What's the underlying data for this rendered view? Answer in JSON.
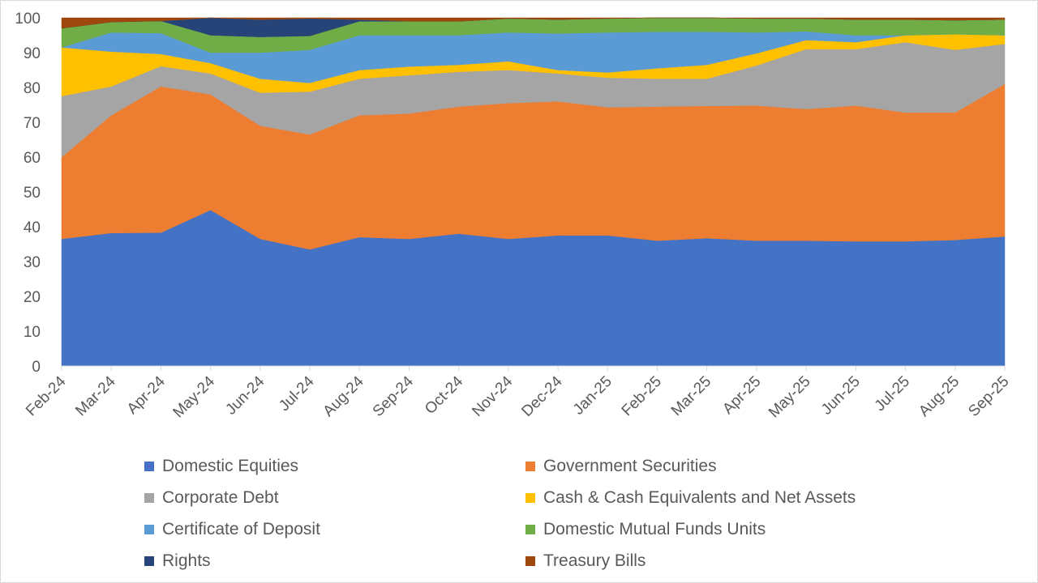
{
  "chart_data": {
    "type": "area",
    "stacked": true,
    "title": "",
    "xlabel": "",
    "ylabel": "",
    "ylim": [
      0,
      100
    ],
    "yticks": [
      "0",
      "10",
      "20",
      "30",
      "40",
      "50",
      "60",
      "70",
      "80",
      "90",
      "100"
    ],
    "gridlines": false,
    "legend_position": "bottom",
    "categories": [
      "Feb-24",
      "Mar-24",
      "Apr-24",
      "May-24",
      "Jun-24",
      "Jul-24",
      "Aug-24",
      "Sep-24",
      "Oct-24",
      "Nov-24",
      "Dec-24",
      "Jan-25",
      "Feb-25",
      "Mar-25",
      "Apr-25",
      "May-25",
      "Jun-25",
      "Jul-25",
      "Aug-25",
      "Sep-25"
    ],
    "series": [
      {
        "name": "Domestic Equities",
        "color": "#4472C4",
        "values": [
          36.5,
          38.2,
          38.3,
          44.8,
          36.5,
          33.5,
          37.0,
          36.5,
          38.0,
          36.5,
          37.5,
          37.5,
          36.0,
          36.7,
          36.0,
          36.0,
          35.8,
          35.8,
          36.2,
          37.2
        ]
      },
      {
        "name": "Government Securities",
        "color": "#ED7D31",
        "values": [
          23.5,
          33.8,
          42.0,
          33.2,
          32.5,
          33.0,
          35.0,
          36.0,
          36.5,
          39.0,
          38.5,
          36.8,
          38.5,
          38.0,
          38.8,
          37.8,
          39.0,
          37.0,
          36.6,
          43.8
        ]
      },
      {
        "name": "Corporate Debt",
        "color": "#A5A5A5",
        "values": [
          17.5,
          8.3,
          5.8,
          6.0,
          9.5,
          12.3,
          10.5,
          11.0,
          10.0,
          9.5,
          8.0,
          8.5,
          8.0,
          7.8,
          11.5,
          17.2,
          16.2,
          20.2,
          18.0,
          11.5
        ]
      },
      {
        "name": "Cash & Cash Equivalents and Net Assets",
        "color": "#FFC000",
        "values": [
          14.0,
          10.0,
          3.5,
          3.0,
          4.0,
          2.5,
          2.5,
          2.5,
          2.0,
          2.5,
          1.0,
          1.5,
          3.0,
          4.0,
          3.5,
          2.6,
          2.0,
          2.0,
          4.5,
          2.5
        ]
      },
      {
        "name": "Certificate of Deposit",
        "color": "#5B9BD5",
        "values": [
          0.0,
          5.5,
          6.0,
          3.0,
          7.5,
          9.5,
          10.0,
          9.0,
          8.5,
          8.3,
          10.5,
          11.5,
          10.5,
          9.5,
          6.0,
          2.5,
          2.0,
          0.0,
          0.0,
          0.0
        ]
      },
      {
        "name": "Domestic Mutual Funds Units",
        "color": "#70AD47",
        "values": [
          5.5,
          3.0,
          3.5,
          5.0,
          4.5,
          4.0,
          4.0,
          4.0,
          4.0,
          4.0,
          4.0,
          4.0,
          4.0,
          4.0,
          4.0,
          3.7,
          4.5,
          4.5,
          4.0,
          4.5
        ]
      },
      {
        "name": "Rights",
        "color": "#264478",
        "values": [
          0.0,
          0.0,
          0.0,
          5.0,
          5.0,
          5.0,
          0.5,
          0.0,
          0.0,
          0.0,
          0.0,
          0.0,
          0.0,
          0.0,
          0.0,
          0.0,
          0.0,
          0.0,
          0.0,
          0.0
        ]
      },
      {
        "name": "Treasury Bills",
        "color": "#9E480E",
        "values": [
          3.0,
          1.2,
          0.9,
          0.0,
          0.5,
          0.2,
          0.5,
          1.0,
          1.0,
          0.2,
          0.5,
          0.2,
          0.0,
          0.0,
          0.2,
          0.2,
          0.5,
          0.5,
          0.7,
          0.5
        ]
      }
    ]
  }
}
